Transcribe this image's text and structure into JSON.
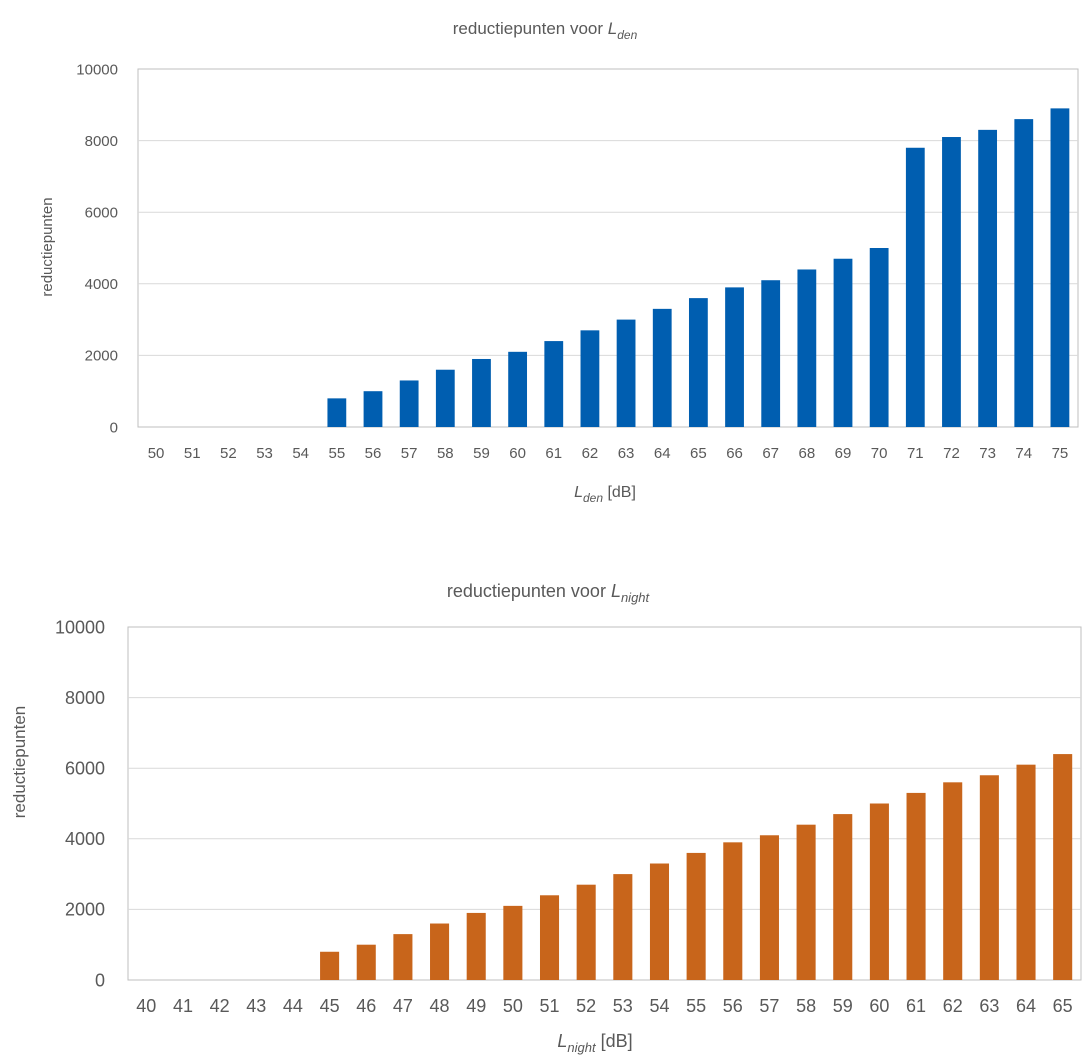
{
  "charts": [
    {
      "title_main": "reductiepunten voor ",
      "title_sym": "L",
      "title_sub": "den",
      "xlabel_sym": "L",
      "xlabel_sub": "den",
      "xlabel_unit": " [dB]",
      "ylabel": "reductiepunten"
    },
    {
      "title_main": "reductiepunten voor ",
      "title_sym": "L",
      "title_sub": "night",
      "xlabel_sym": "L",
      "xlabel_sub": "night",
      "xlabel_unit": " [dB]",
      "ylabel": "reductiepunten"
    }
  ],
  "chart_data": [
    {
      "type": "bar",
      "title": "reductiepunten voor Lden",
      "xlabel": "Lden [dB]",
      "ylabel": "reductiepunten",
      "ylim": [
        0,
        10000
      ],
      "yticks": [
        0,
        2000,
        4000,
        6000,
        8000,
        10000
      ],
      "grid": true,
      "color": "#005EB0",
      "categories": [
        "50",
        "51",
        "52",
        "53",
        "54",
        "55",
        "56",
        "57",
        "58",
        "59",
        "60",
        "61",
        "62",
        "63",
        "64",
        "65",
        "66",
        "67",
        "68",
        "69",
        "70",
        "71",
        "72",
        "73",
        "74",
        "75"
      ],
      "values": [
        0,
        0,
        0,
        0,
        0,
        800,
        1000,
        1300,
        1600,
        1900,
        2100,
        2400,
        2700,
        3000,
        3300,
        3600,
        3900,
        4100,
        4400,
        4700,
        5000,
        7800,
        8100,
        8300,
        8600,
        8900
      ]
    },
    {
      "type": "bar",
      "title": "reductiepunten voor Lnight",
      "xlabel": "Lnight [dB]",
      "ylabel": "reductiepunten",
      "ylim": [
        0,
        10000
      ],
      "yticks": [
        0,
        2000,
        4000,
        6000,
        8000,
        10000
      ],
      "grid": true,
      "color": "#C8651B",
      "categories": [
        "40",
        "41",
        "42",
        "43",
        "44",
        "45",
        "46",
        "47",
        "48",
        "49",
        "50",
        "51",
        "52",
        "53",
        "54",
        "55",
        "56",
        "57",
        "58",
        "59",
        "60",
        "61",
        "62",
        "63",
        "64",
        "65"
      ],
      "values": [
        0,
        0,
        0,
        0,
        0,
        800,
        1000,
        1300,
        1600,
        1900,
        2100,
        2400,
        2700,
        3000,
        3300,
        3600,
        3900,
        4100,
        4400,
        4700,
        5000,
        5300,
        5600,
        5800,
        6100,
        6400
      ]
    }
  ]
}
